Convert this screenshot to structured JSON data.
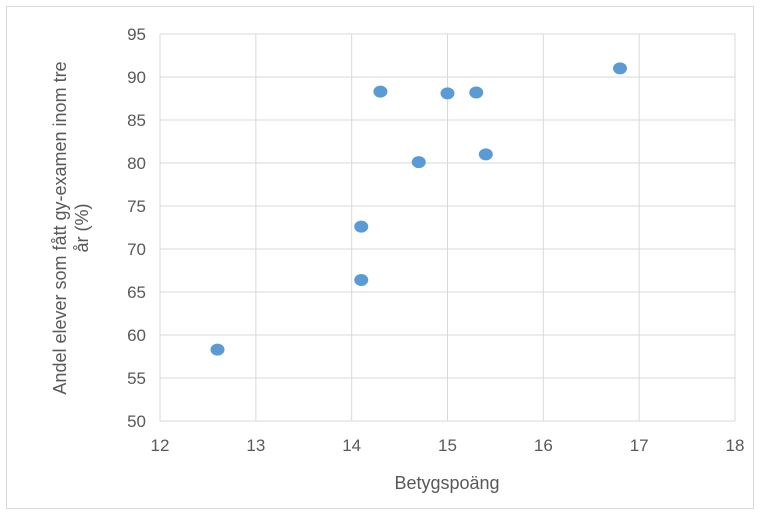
{
  "chart_data": {
    "type": "scatter",
    "xlabel": "Betygspoäng",
    "ylabel_lines": [
      "Andel elever som fått gy-examen inom tre",
      "år (%)"
    ],
    "xlim": [
      12,
      18
    ],
    "ylim": [
      50,
      95
    ],
    "x_ticks": [
      12,
      13,
      14,
      15,
      16,
      17,
      18
    ],
    "y_ticks": [
      50,
      55,
      60,
      65,
      70,
      75,
      80,
      85,
      90,
      95
    ],
    "grid": true,
    "legend": false,
    "marker_color": "#5b9bd5",
    "points": [
      {
        "x": 12.6,
        "y": 58.3
      },
      {
        "x": 14.1,
        "y": 66.4
      },
      {
        "x": 14.1,
        "y": 72.6
      },
      {
        "x": 14.3,
        "y": 88.3
      },
      {
        "x": 14.7,
        "y": 80.1
      },
      {
        "x": 15.0,
        "y": 88.1
      },
      {
        "x": 15.3,
        "y": 88.2
      },
      {
        "x": 15.4,
        "y": 81.0
      },
      {
        "x": 16.8,
        "y": 91.0
      }
    ]
  }
}
